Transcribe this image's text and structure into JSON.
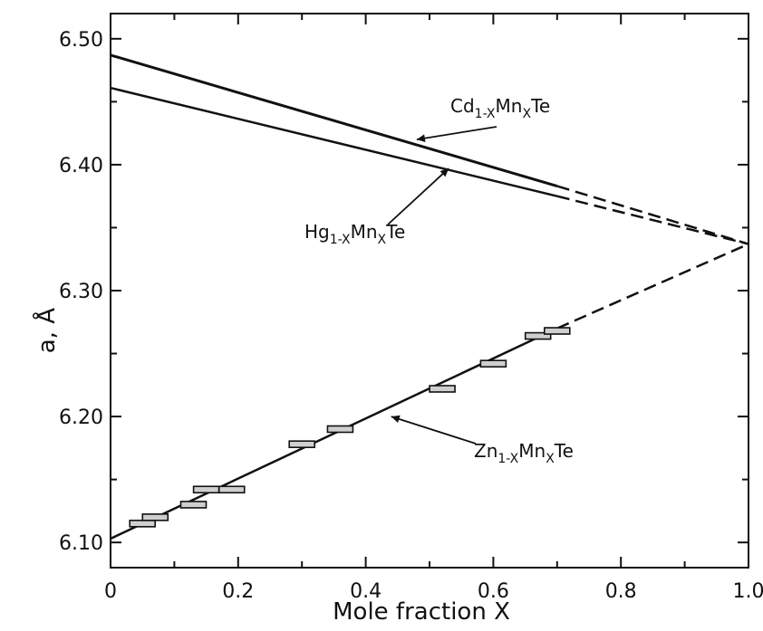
{
  "chart_data": {
    "type": "line",
    "title": "",
    "xlabel": "Mole fraction  X",
    "ylabel_main": "a",
    "ylabel_unit": "Å",
    "xlim": [
      0,
      1.0
    ],
    "ylim": [
      6.08,
      6.52
    ],
    "x_ticks": [
      0,
      0.2,
      0.4,
      0.6,
      0.8,
      1.0
    ],
    "x_tick_labels": [
      "0",
      "0.2",
      "0.4",
      "0.6",
      "0.8",
      "1.0"
    ],
    "y_ticks": [
      6.1,
      6.2,
      6.3,
      6.4,
      6.5
    ],
    "y_tick_labels": [
      "6.10",
      "6.20",
      "6.30",
      "6.40",
      "6.50"
    ],
    "grid": false,
    "series": [
      {
        "name": "Cd1-xMnxTe",
        "solid": {
          "x": [
            0,
            0.7
          ],
          "y": [
            6.487,
            6.383
          ]
        },
        "dashed": {
          "x": [
            0.7,
            1.0
          ],
          "y": [
            6.383,
            6.337
          ]
        }
      },
      {
        "name": "Hg1-xMnxTe",
        "solid": {
          "x": [
            0,
            0.7
          ],
          "y": [
            6.461,
            6.375
          ]
        },
        "dashed": {
          "x": [
            0.7,
            1.0
          ],
          "y": [
            6.375,
            6.337
          ]
        }
      },
      {
        "name": "Zn1-xMnxTe",
        "solid": {
          "x": [
            0,
            0.7
          ],
          "y": [
            6.103,
            6.27
          ]
        },
        "dashed": {
          "x": [
            0.7,
            1.0
          ],
          "y": [
            6.27,
            6.337
          ]
        }
      }
    ],
    "zn_points": [
      {
        "x": 0.05,
        "y": 6.115
      },
      {
        "x": 0.07,
        "y": 6.12
      },
      {
        "x": 0.13,
        "y": 6.13
      },
      {
        "x": 0.15,
        "y": 6.142
      },
      {
        "x": 0.19,
        "y": 6.142
      },
      {
        "x": 0.3,
        "y": 6.178
      },
      {
        "x": 0.36,
        "y": 6.19
      },
      {
        "x": 0.52,
        "y": 6.222
      },
      {
        "x": 0.6,
        "y": 6.242
      },
      {
        "x": 0.67,
        "y": 6.264
      },
      {
        "x": 0.7,
        "y": 6.268
      }
    ],
    "annotations": [
      {
        "series": "Cd",
        "prefix": "Cd",
        "sub1": "1-X",
        "mid": "Mn",
        "sub2": "X",
        "suffix": "Te",
        "pointer": {
          "x": 0.48,
          "y": 6.42
        }
      },
      {
        "series": "Hg",
        "prefix": "Hg",
        "sub1": "1-X",
        "mid": "Mn",
        "sub2": "X",
        "suffix": "Te",
        "pointer": {
          "x": 0.53,
          "y": 6.397
        }
      },
      {
        "series": "Zn",
        "prefix": "Zn",
        "sub1": "1-X",
        "mid": "Mn",
        "sub2": "X",
        "suffix": "Te",
        "pointer": {
          "x": 0.44,
          "y": 6.2
        }
      }
    ]
  }
}
